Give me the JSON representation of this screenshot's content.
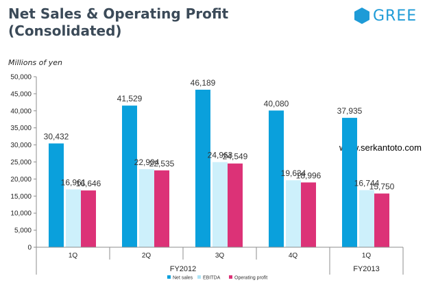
{
  "title": {
    "line1": "Net Sales & Operating Profit",
    "line2": "(Consolidated)"
  },
  "logo": {
    "text": "GREE",
    "icon": "hexagon-icon",
    "color": "#1e9bd7"
  },
  "watermark": "www.serkantoto.com",
  "chart_data": {
    "type": "bar",
    "ylabel": "Millions of yen",
    "ylim": [
      0,
      50000
    ],
    "yticks": [
      0,
      5000,
      10000,
      15000,
      20000,
      25000,
      30000,
      35000,
      40000,
      45000,
      50000
    ],
    "ytick_labels": [
      "0",
      "5,000",
      "10,000",
      "15,000",
      "20,000",
      "25,000",
      "30,000",
      "35,000",
      "40,000",
      "45,000",
      "50,000"
    ],
    "categories": [
      "1Q",
      "2Q",
      "3Q",
      "4Q",
      "1Q"
    ],
    "groups": [
      {
        "label": "FY2012",
        "categories": [
          0,
          1,
          2,
          3
        ]
      },
      {
        "label": "FY2013",
        "categories": [
          4
        ]
      }
    ],
    "series": [
      {
        "name": "Net sales",
        "color": "#0aa0dc",
        "values": [
          30432,
          41529,
          46189,
          40080,
          37935
        ],
        "labels": [
          "30,432",
          "41,529",
          "46,189",
          "40,080",
          "37,935"
        ]
      },
      {
        "name": "EBITDA",
        "color": "#cdf0fb",
        "values": [
          16961,
          22904,
          24963,
          19634,
          16744
        ],
        "labels": [
          "16,961",
          "22,904",
          "24,963",
          "19,634",
          "16,744"
        ]
      },
      {
        "name": "Operating profit",
        "color": "#dc3277",
        "values": [
          16646,
          22535,
          24549,
          18996,
          15750
        ],
        "labels": [
          "16,646",
          "22,535",
          "24,549",
          "18,996",
          "15,750"
        ]
      }
    ],
    "legend": "bottom",
    "grid": false
  }
}
